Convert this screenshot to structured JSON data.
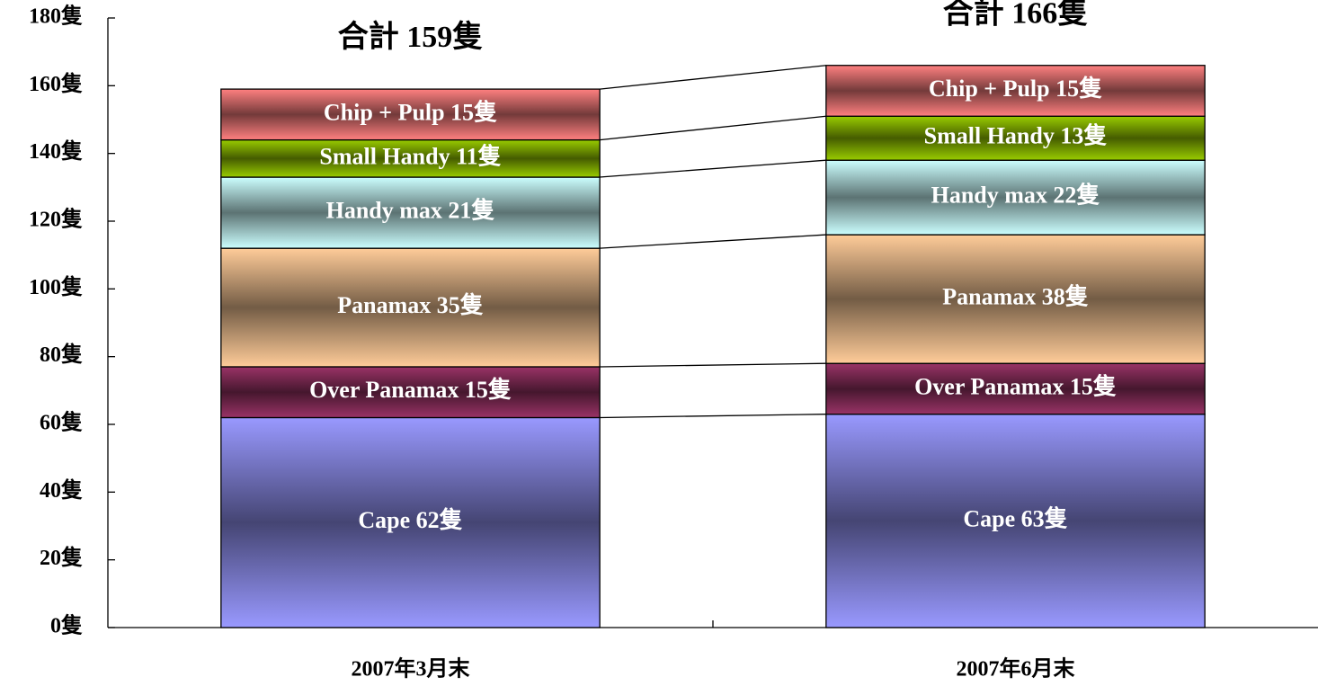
{
  "chart_data": {
    "type": "stacked-bar",
    "categories": [
      "2007年3月末",
      "2007年6月末"
    ],
    "total_labels": [
      "合計 159隻",
      "合計 166隻"
    ],
    "series": [
      {
        "name": "Cape",
        "color": "#9999ff",
        "values": [
          62,
          63
        ],
        "value_labels": [
          "Cape 62隻",
          "Cape 63隻"
        ]
      },
      {
        "name": "Over Panamax",
        "color": "#993366",
        "values": [
          15,
          15
        ],
        "value_labels": [
          "Over Panamax 15隻",
          "Over Panamax 15隻"
        ]
      },
      {
        "name": "Panamax",
        "color": "#ffcc99",
        "values": [
          35,
          38
        ],
        "value_labels": [
          "Panamax 35隻",
          "Panamax 38隻"
        ]
      },
      {
        "name": "Handy max",
        "color": "#ccffff",
        "values": [
          21,
          22
        ],
        "value_labels": [
          "Handy max 21隻",
          "Handy max 22隻"
        ]
      },
      {
        "name": "Small Handy",
        "color": "#99cc00",
        "values": [
          11,
          13
        ],
        "value_labels": [
          "Small Handy 11隻",
          "Small Handy 13隻"
        ]
      },
      {
        "name": "Chip + Pulp",
        "color": "#ff8080",
        "values": [
          15,
          15
        ],
        "value_labels": [
          "Chip + Pulp 15隻",
          "Chip + Pulp 15隻"
        ]
      }
    ],
    "ylim": [
      0,
      180
    ],
    "yticks": [
      {
        "value": 0,
        "label": "0隻"
      },
      {
        "value": 20,
        "label": "20隻"
      },
      {
        "value": 40,
        "label": "40隻"
      },
      {
        "value": 60,
        "label": "60隻"
      },
      {
        "value": 80,
        "label": "80隻"
      },
      {
        "value": 100,
        "label": "100隻"
      },
      {
        "value": 120,
        "label": "120隻"
      },
      {
        "value": 140,
        "label": "140隻"
      },
      {
        "value": 160,
        "label": "160隻"
      },
      {
        "value": 180,
        "label": "180隻"
      }
    ]
  }
}
